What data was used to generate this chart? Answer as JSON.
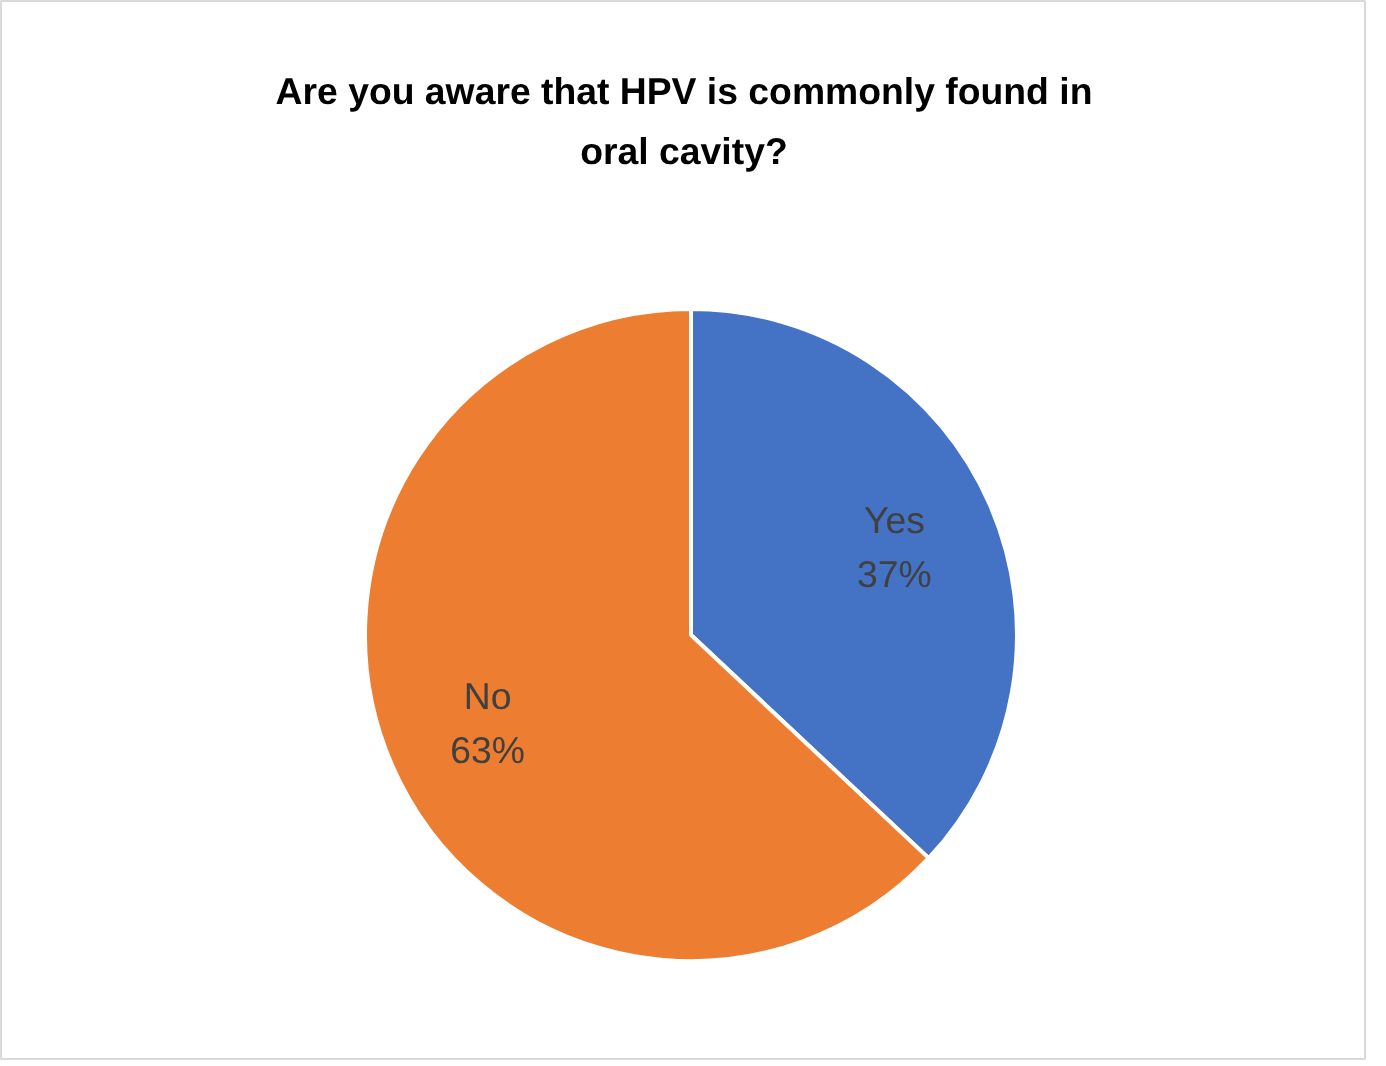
{
  "chart_data": {
    "type": "pie",
    "title": "Are you aware that HPV is commonly found in oral cavity?",
    "categories": [
      "Yes",
      "No"
    ],
    "values": [
      37,
      63
    ],
    "colors": [
      "#4472c4",
      "#ed7d31"
    ],
    "value_labels": [
      "37%",
      "63%"
    ],
    "legend": false
  }
}
